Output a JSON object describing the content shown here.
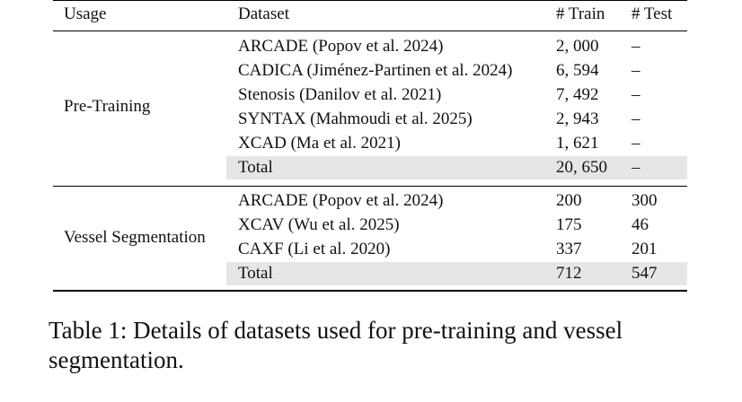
{
  "table": {
    "headers": {
      "usage": "Usage",
      "dataset": "Dataset",
      "train": "# Train",
      "test": "# Test"
    },
    "groups": [
      {
        "usage": "Pre-Training",
        "rows": [
          {
            "dataset": "ARCADE (Popov et al. 2024)",
            "train": "2, 000",
            "test": "–"
          },
          {
            "dataset": "CADICA (Jiménez-Partinen et al. 2024)",
            "train": "6, 594",
            "test": "–"
          },
          {
            "dataset": "Stenosis (Danilov et al. 2021)",
            "train": "7, 492",
            "test": "–"
          },
          {
            "dataset": "SYNTAX (Mahmoudi et al. 2025)",
            "train": "2, 943",
            "test": "–"
          },
          {
            "dataset": "XCAD (Ma et al. 2021)",
            "train": "1, 621",
            "test": "–"
          }
        ],
        "total": {
          "dataset": "Total",
          "train": "20, 650",
          "test": "–"
        }
      },
      {
        "usage": "Vessel Segmentation",
        "rows": [
          {
            "dataset": "ARCADE (Popov et al. 2024)",
            "train": "200",
            "test": "300"
          },
          {
            "dataset": "XCAV (Wu et al. 2025)",
            "train": "175",
            "test": "46"
          },
          {
            "dataset": "CAXF (Li et al. 2020)",
            "train": "337",
            "test": "201"
          }
        ],
        "total": {
          "dataset": "Total",
          "train": "712",
          "test": "547"
        }
      }
    ]
  },
  "caption": "Table 1: Details of datasets used for pre-training and vessel segmentation."
}
